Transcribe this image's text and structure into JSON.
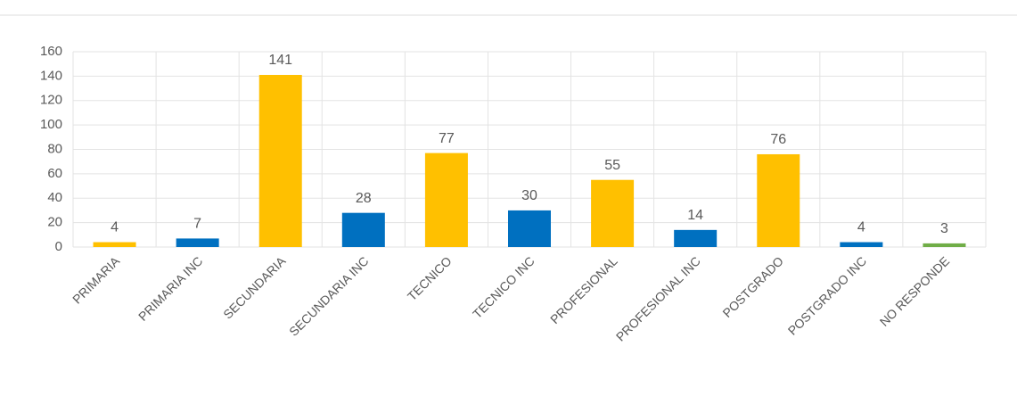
{
  "chart_data": {
    "type": "bar",
    "categories": [
      "PRIMARIA",
      "PRIMARIA INC",
      "SECUNDARIA",
      "SECUNDARIA INC",
      "TECNICO",
      "TECNICO INC",
      "PROFESIONAL",
      "PROFESIONAL  INC",
      "POSTGRADO",
      "POSTGRADO INC",
      "NO RESPONDE"
    ],
    "values": [
      4,
      7,
      141,
      28,
      77,
      30,
      55,
      14,
      76,
      4,
      3
    ],
    "colors": [
      "#FFC000",
      "#0070C0",
      "#FFC000",
      "#0070C0",
      "#FFC000",
      "#0070C0",
      "#FFC000",
      "#0070C0",
      "#FFC000",
      "#0070C0",
      "#70AD47"
    ],
    "ylim": [
      0,
      160
    ],
    "yticks": [
      0,
      20,
      40,
      60,
      80,
      100,
      120,
      140,
      160
    ],
    "grid": true
  }
}
